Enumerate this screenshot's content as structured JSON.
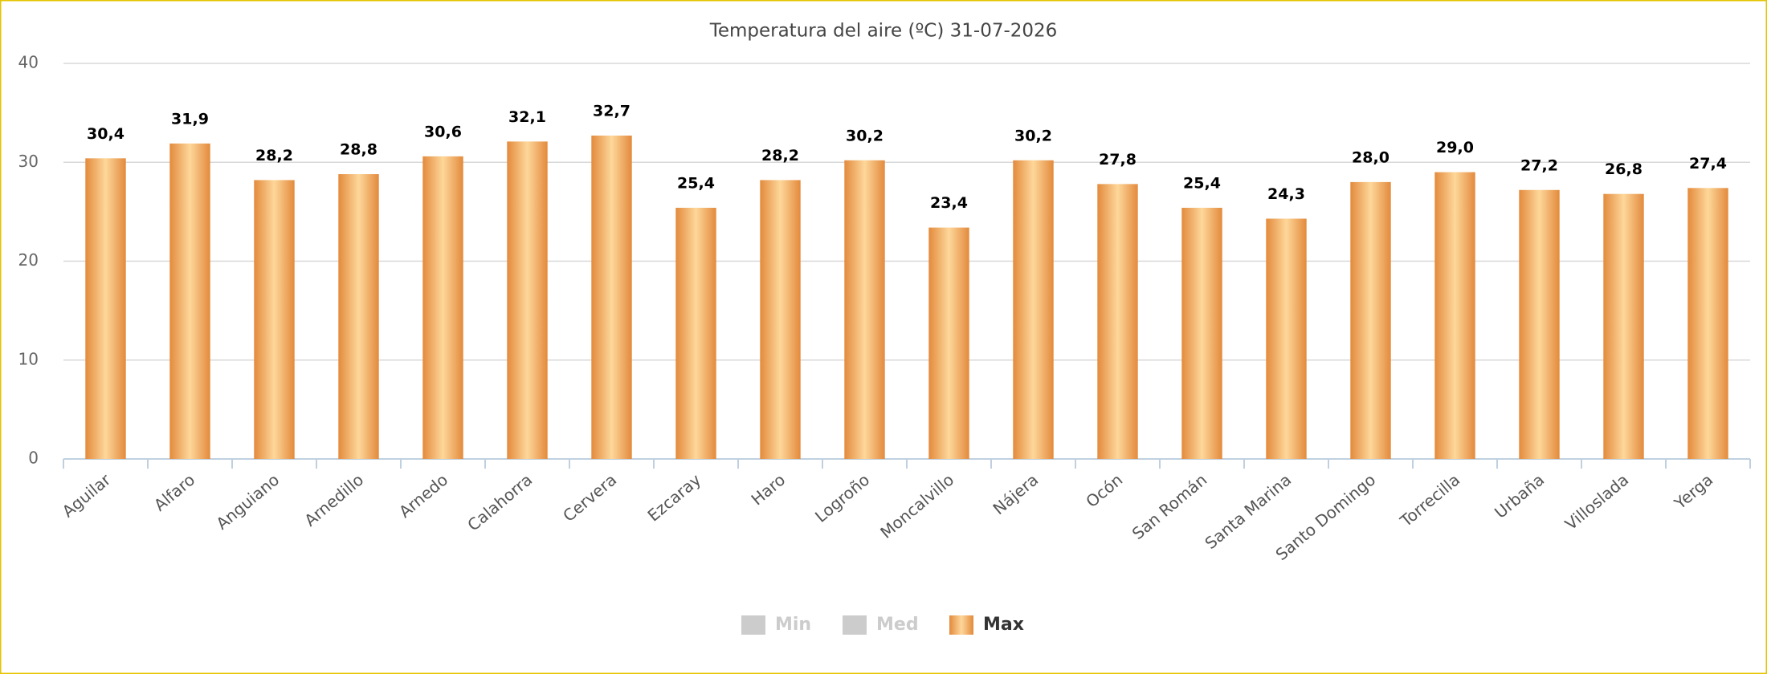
{
  "chart_data": {
    "type": "bar",
    "title": "Temperatura del aire (ºC) 31-07-2026",
    "categories": [
      "Aguilar",
      "Alfaro",
      "Anguiano",
      "Arnedillo",
      "Arnedo",
      "Calahorra",
      "Cervera",
      "Ezcaray",
      "Haro",
      "Logroño",
      "Moncalvillo",
      "Nájera",
      "Ocón",
      "San Román",
      "Santa Marina",
      "Santo Domingo",
      "Torrecilla",
      "Urbaña",
      "Villoslada",
      "Yerga"
    ],
    "series": [
      {
        "name": "Min",
        "visible": false
      },
      {
        "name": "Med",
        "visible": false
      },
      {
        "name": "Max",
        "visible": true,
        "color": "#e38a3c",
        "values": [
          30.4,
          31.9,
          28.2,
          28.8,
          30.6,
          32.1,
          32.7,
          25.4,
          28.2,
          30.2,
          23.4,
          30.2,
          27.8,
          25.4,
          24.3,
          28.0,
          29.0,
          27.2,
          26.8,
          27.4
        ],
        "value_labels": [
          "30,4",
          "31,9",
          "28,2",
          "28,8",
          "30,6",
          "32,1",
          "32,7",
          "25,4",
          "28,2",
          "30,2",
          "23,4",
          "30,2",
          "27,8",
          "25,4",
          "24,3",
          "28,0",
          "29,0",
          "27,2",
          "26,8",
          "27,4"
        ]
      }
    ],
    "ylim": [
      0,
      40
    ],
    "yticks": [
      0,
      10,
      20,
      30,
      40
    ],
    "grid": true
  }
}
